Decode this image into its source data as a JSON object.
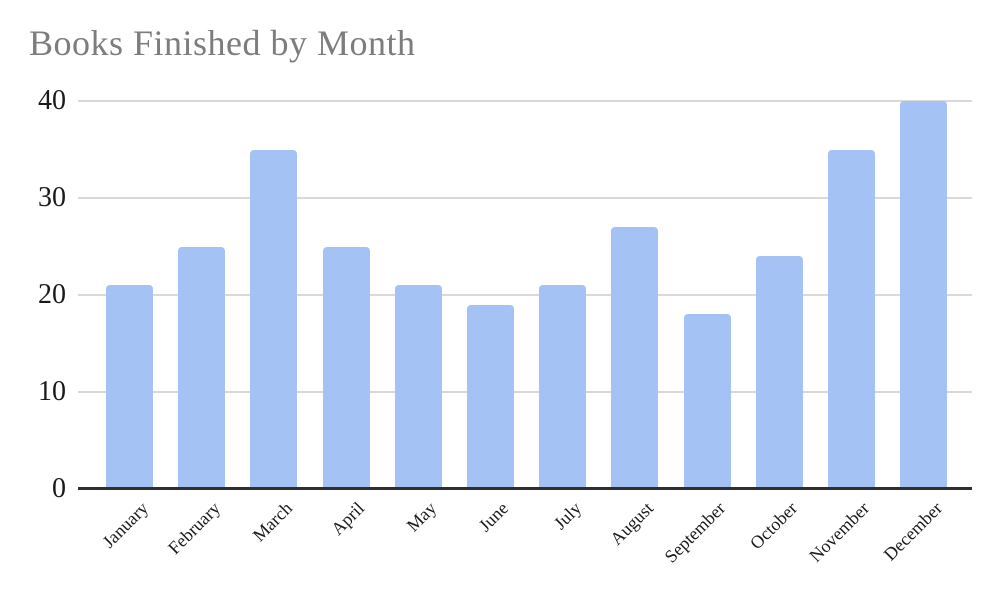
{
  "chart_data": {
    "type": "bar",
    "title": "Books Finished by Month",
    "categories": [
      "January",
      "February",
      "March",
      "April",
      "May",
      "June",
      "July",
      "August",
      "September",
      "October",
      "November",
      "December"
    ],
    "values": [
      21,
      25,
      35,
      25,
      21,
      19,
      21,
      27,
      18,
      24,
      35,
      40
    ],
    "xlabel": "",
    "ylabel": "",
    "ylim": [
      0,
      40
    ],
    "yticks": [
      0,
      10,
      20,
      30,
      40
    ],
    "grid": "horizontal",
    "legend": "none",
    "x_label_rotation_deg": 45,
    "colors": {
      "bar": "#a4c2f4",
      "gridline": "#d9d9d9",
      "axis_line": "#2f2f2f",
      "title_text": "#7d7d7d",
      "tick_text": "#1a1a1a"
    }
  }
}
